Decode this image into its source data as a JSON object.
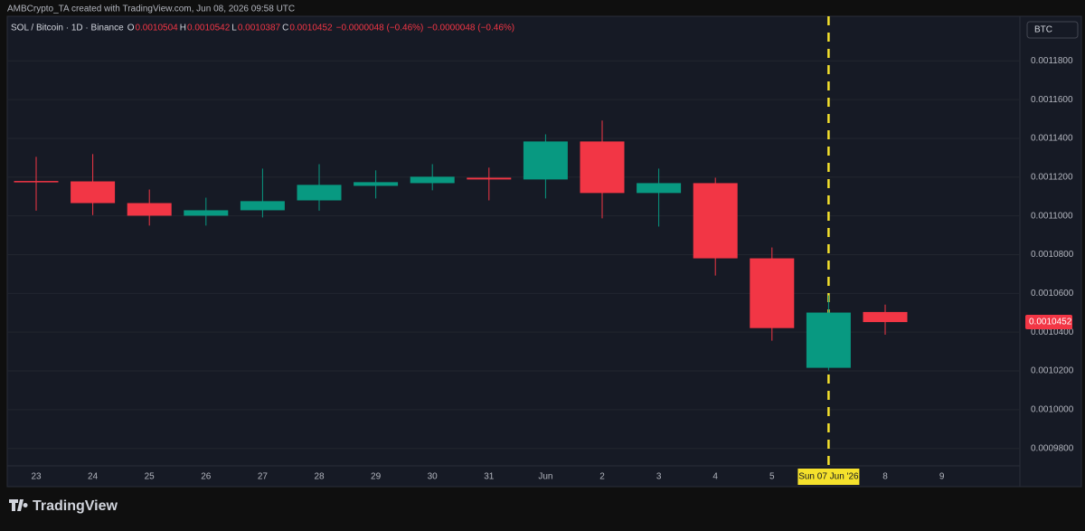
{
  "header": {
    "credit": "AMBCrypto_TA created with TradingView.com, Jun 08, 2026 09:58 UTC",
    "symbol": "SOL / Bitcoin · 1D · Binance",
    "o": "O",
    "h": "H",
    "l": "L",
    "c": "C",
    "changes": [
      "−0.0000048 (−0.46%)",
      "−0.0000048 (−0.46%)"
    ],
    "currency": "BTC"
  },
  "footer": {
    "logo": "TradingView"
  },
  "chart_data": {
    "type": "candlestick",
    "categories": [
      "23",
      "24",
      "25",
      "26",
      "27",
      "28",
      "29",
      "30",
      "31",
      "Jun",
      "2",
      "3",
      "4",
      "5",
      "Sun 07 Jun '26",
      "8",
      "9"
    ],
    "open": [
      0.001118,
      0.0011178,
      0.0011066,
      0.0011001,
      0.0011029,
      0.001108,
      0.0011155,
      0.0011169,
      0.0011197,
      0.0011188,
      0.0011384,
      0.0011118,
      0.0011169,
      0.0010781,
      0.0010216,
      0.0010504,
      null
    ],
    "high": [
      0.0011305,
      0.0011319,
      0.0011136,
      0.0011094,
      0.0011244,
      0.0011267,
      0.0011235,
      0.0011267,
      0.0011249,
      0.0011421,
      0.0011492,
      0.0011244,
      0.0011197,
      0.0010837,
      0.001059,
      0.0010542,
      null
    ],
    "low": [
      0.0011027,
      0.0011004,
      0.001095,
      0.001095,
      0.0010992,
      0.0011027,
      0.001109,
      0.0011132,
      0.001108,
      0.001109,
      0.0010987,
      0.0010945,
      0.0010692,
      0.0010356,
      0.0010202,
      0.0010387,
      null
    ],
    "close": [
      0.0011178,
      0.0011066,
      0.0011001,
      0.0011029,
      0.0011076,
      0.001116,
      0.0011174,
      0.0011202,
      0.0011188,
      0.0011384,
      0.0011118,
      0.0011169,
      0.0010781,
      0.0010421,
      0.0010501,
      0.0010452,
      null
    ],
    "up_color": "#089981",
    "down_color": "#f23645",
    "ylim": [
      0.000971,
      0.001203
    ],
    "yticks": [
      {
        "value": 0.00098,
        "label": "0.0009800"
      },
      {
        "value": 0.001,
        "label": "0.0010000"
      },
      {
        "value": 0.00102,
        "label": "0.0010200"
      },
      {
        "value": 0.00104,
        "label": "0.0010400"
      },
      {
        "value": 0.00106,
        "label": "0.0010600"
      },
      {
        "value": 0.00108,
        "label": "0.0010800"
      },
      {
        "value": 0.0011,
        "label": "0.0011000"
      },
      {
        "value": 0.00112,
        "label": "0.0011200"
      },
      {
        "value": 0.00114,
        "label": "0.0011400"
      },
      {
        "value": 0.00116,
        "label": "0.0011600"
      },
      {
        "value": 0.00118,
        "label": "0.0011800"
      }
    ],
    "grid": true
  }
}
